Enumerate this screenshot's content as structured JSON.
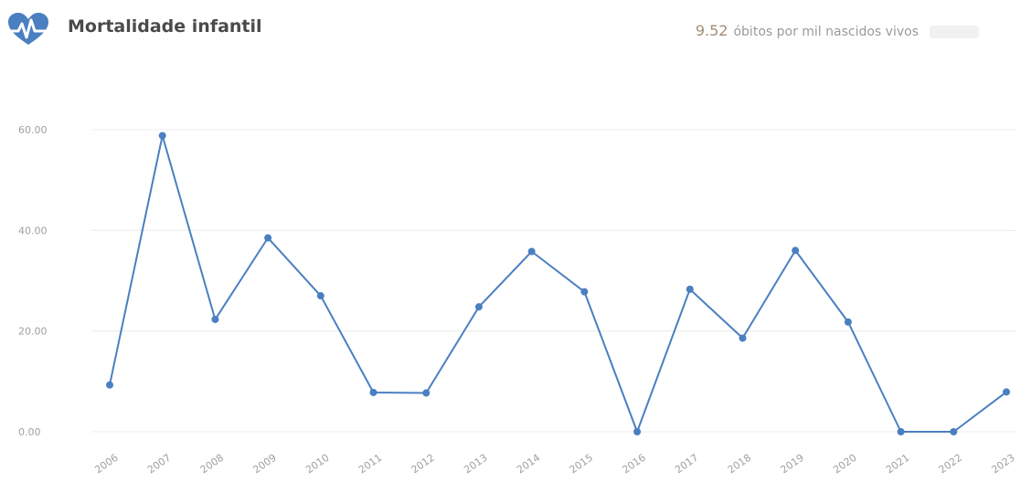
{
  "header": {
    "title": "Mortalidade infantil",
    "value": "9.52",
    "unit_label": "óbitos por mil nascidos vivos",
    "icon": "heart-pulse-icon"
  },
  "colors": {
    "line": "#4a7fc1",
    "icon": "#4a7fc1",
    "grid": "#ececec",
    "axis_text": "#a0a0a0",
    "value_text": "#a08d78"
  },
  "chart_data": {
    "type": "line",
    "categories": [
      "2006",
      "2007",
      "2008",
      "2009",
      "2010",
      "2011",
      "2012",
      "2013",
      "2014",
      "2015",
      "2016",
      "2017",
      "2018",
      "2019",
      "2020",
      "2021",
      "2022",
      "2023"
    ],
    "series": [
      {
        "values": [
          9.3,
          58.8,
          22.3,
          38.5,
          27.0,
          7.8,
          7.7,
          24.8,
          35.8,
          27.8,
          0,
          28.3,
          18.6,
          36.0,
          21.8,
          0,
          0,
          7.9
        ]
      }
    ],
    "yticks": [
      "60.00",
      "40.00",
      "20.00",
      "0.00"
    ],
    "ylim": [
      0,
      60
    ],
    "grid": true
  }
}
